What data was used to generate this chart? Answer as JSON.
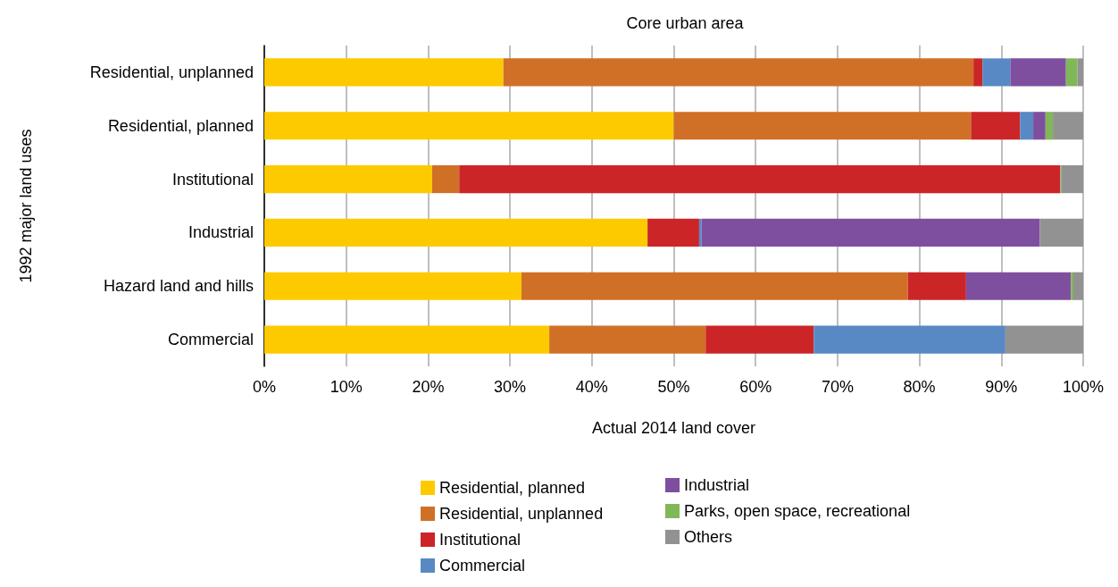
{
  "chart_data": {
    "type": "bar",
    "orientation": "horizontal",
    "stacked": true,
    "title": "Core urban area",
    "xlabel": "Actual 2014 land cover",
    "ylabel": "1992 major land uses",
    "categories": [
      "Residential, unplanned",
      "Residential, planned",
      "Institutional",
      "Industrial",
      "Hazard land and hills",
      "Commercial"
    ],
    "series": [
      {
        "name": "Residential, planned",
        "color": "#fdca00",
        "values": [
          29.2,
          50.0,
          20.5,
          46.8,
          31.4,
          34.8
        ]
      },
      {
        "name": "Residential, unplanned",
        "color": "#d07027",
        "values": [
          57.4,
          36.3,
          3.3,
          0,
          47.2,
          19.1
        ]
      },
      {
        "name": "Institutional",
        "color": "#cb2528",
        "values": [
          1.1,
          6.0,
          73.4,
          6.3,
          7.1,
          13.2
        ]
      },
      {
        "name": "Commercial",
        "color": "#5889c5",
        "values": [
          3.4,
          1.6,
          0,
          0.3,
          0,
          23.4
        ]
      },
      {
        "name": "Industrial",
        "color": "#7f4f9f",
        "values": [
          6.8,
          1.5,
          0,
          41.3,
          12.8,
          0
        ]
      },
      {
        "name": "Parks, open space, recreational",
        "color": "#80b757",
        "values": [
          1.4,
          0.9,
          0.1,
          0,
          0.3,
          0
        ]
      },
      {
        "name": "Others",
        "color": "#929292",
        "values": [
          0.7,
          3.7,
          2.7,
          5.3,
          1.2,
          9.5
        ]
      }
    ],
    "xlim": [
      0,
      100
    ],
    "xticks": [
      {
        "value": 0,
        "label": "0%"
      },
      {
        "value": 10,
        "label": "10%"
      },
      {
        "value": 20,
        "label": "20%"
      },
      {
        "value": 30,
        "label": "30%"
      },
      {
        "value": 40,
        "label": "40%"
      },
      {
        "value": 50,
        "label": "50%"
      },
      {
        "value": 60,
        "label": "60%"
      },
      {
        "value": 70,
        "label": "70%"
      },
      {
        "value": 80,
        "label": "80%"
      },
      {
        "value": 90,
        "label": "90%"
      },
      {
        "value": 100,
        "label": "100%"
      }
    ],
    "grid": "x",
    "legend": "bottom"
  }
}
